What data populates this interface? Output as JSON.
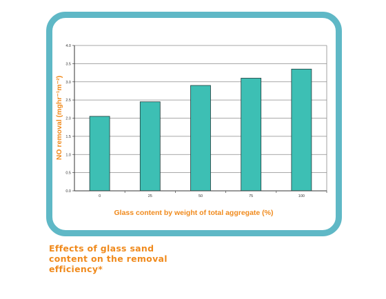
{
  "chart_data": {
    "type": "bar",
    "categories": [
      "0",
      "25",
      "50",
      "75",
      "100"
    ],
    "values": [
      2.05,
      2.45,
      2.9,
      3.1,
      3.35
    ],
    "ylim": [
      0,
      4.0
    ],
    "yticks": [
      "0.0",
      "0.5",
      "1.0",
      "1.5",
      "2.0",
      "2.5",
      "3.0",
      "3.5",
      "4.0"
    ],
    "xlabel": "Glass content by weight of total aggregate (%)",
    "ylabel": "NO removal (mghr⁻¹m⁻²)",
    "grid": true,
    "legend": "none",
    "colors": {
      "bar": "#3dbfb4",
      "axis_label": "#f08a1c",
      "frame": "#5fb8c6"
    }
  },
  "caption": "Effects of glass sand content on the removal efficiency*"
}
